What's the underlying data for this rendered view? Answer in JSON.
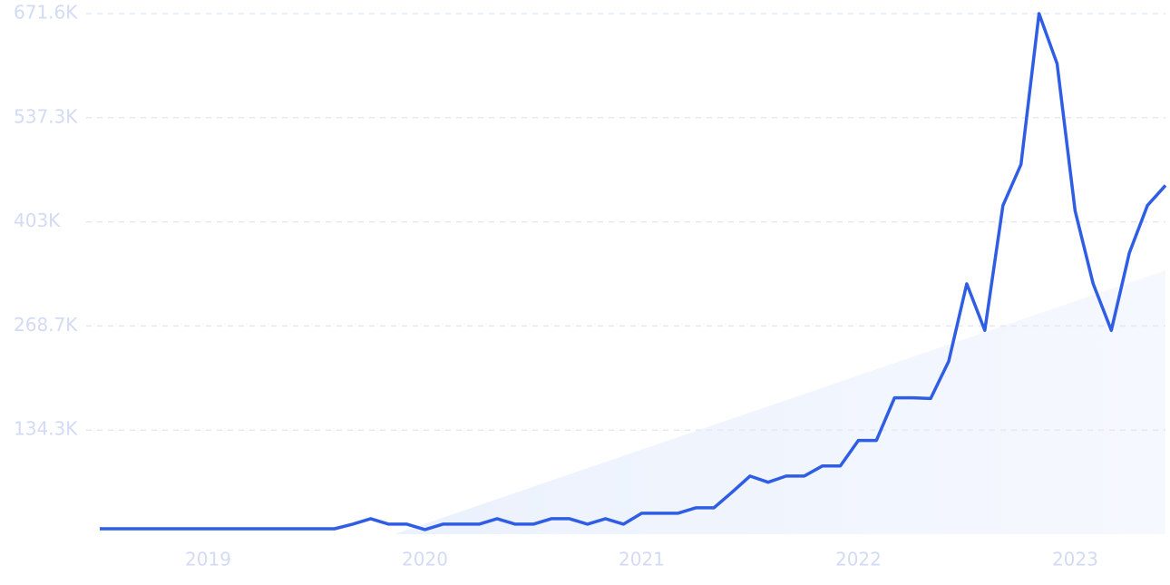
{
  "chart_data": {
    "type": "line",
    "x": [
      2018.5,
      2018.5833,
      2018.6667,
      2018.75,
      2018.8333,
      2018.9167,
      2019.0,
      2019.0833,
      2019.1667,
      2019.25,
      2019.3333,
      2019.4167,
      2019.5,
      2019.5833,
      2019.6667,
      2019.75,
      2019.8333,
      2019.9167,
      2020.0,
      2020.0833,
      2020.1667,
      2020.25,
      2020.3333,
      2020.4167,
      2020.5,
      2020.5833,
      2020.6667,
      2020.75,
      2020.8333,
      2020.9167,
      2021.0,
      2021.0833,
      2021.1667,
      2021.25,
      2021.3333,
      2021.4167,
      2021.5,
      2021.5833,
      2021.6667,
      2021.75,
      2021.8333,
      2021.9167,
      2022.0,
      2022.0833,
      2022.1667,
      2022.25,
      2022.3333,
      2022.4167,
      2022.5,
      2022.5833,
      2022.6667,
      2022.75,
      2022.8333,
      2022.9167,
      2023.0,
      2023.0833,
      2023.1667,
      2023.25,
      2023.3333,
      2023.4167
    ],
    "series": [
      {
        "color": "#2f5de3",
        "values": [
          7000,
          7000,
          7000,
          7000,
          7000,
          7000,
          7000,
          7000,
          7000,
          7000,
          7000,
          7000,
          7000,
          7000,
          13000,
          20000,
          13000,
          13000,
          6000,
          13000,
          13000,
          13000,
          20000,
          13000,
          13000,
          20000,
          20000,
          13000,
          20000,
          13000,
          27000,
          27000,
          27000,
          34000,
          34000,
          54000,
          75000,
          67000,
          75000,
          75000,
          88000,
          88000,
          121000,
          121000,
          176000,
          176000,
          175000,
          223000,
          323000,
          263000,
          424000,
          477000,
          671600,
          607000,
          417000,
          323000,
          263000,
          363000,
          424000,
          450000
        ]
      }
    ],
    "xlim": [
      2018.5,
      2023.4167
    ],
    "xticks": [
      2019,
      2020,
      2021,
      2022,
      2023
    ],
    "ylim": [
      0,
      671600
    ],
    "yticks": [
      {
        "value": 134300,
        "label": "134.3K"
      },
      {
        "value": 268700,
        "label": "268.7K"
      },
      {
        "value": 403000,
        "label": "403K"
      },
      {
        "value": 537300,
        "label": "537.3K"
      },
      {
        "value": 671600,
        "label": "671.6K"
      }
    ],
    "grid": true
  }
}
